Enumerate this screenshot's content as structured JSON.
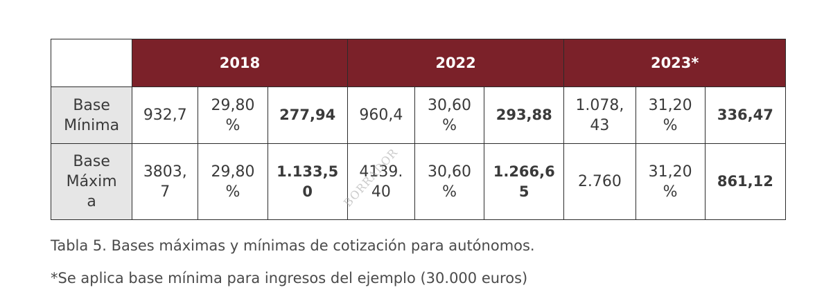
{
  "table": {
    "years": [
      "2018",
      "2022",
      "2023*"
    ],
    "rows": [
      {
        "label": "Base\nMínima",
        "cells": [
          {
            "base": "932,7",
            "rate": "29,80\n%",
            "amount": "277,94"
          },
          {
            "base": "960,4",
            "rate": "30,60\n%",
            "amount": "293,88"
          },
          {
            "base": "1.078,\n43",
            "rate": "31,20\n%",
            "amount": "336,47"
          }
        ]
      },
      {
        "label": "Base\nMáxim\na",
        "cells": [
          {
            "base": "3803,\n7",
            "rate": "29,80\n%",
            "amount": "1.133,5\n0"
          },
          {
            "base": "4139.\n40",
            "rate": "30,60\n%",
            "amount": "1.266,6\n5"
          },
          {
            "base": "2.760",
            "rate": "31,20\n%",
            "amount": "861,12"
          }
        ]
      }
    ]
  },
  "captions": {
    "table_caption": "Tabla 5. Bases máximas y mínimas de cotización para autónomos.",
    "footnote": "*Se aplica base mínima para ingresos del ejemplo (30.000 euros)"
  },
  "watermark": {
    "text": "BORRADOR",
    "color": "#a0a0a0"
  },
  "colors": {
    "header_bg": "#7b2129",
    "label_bg": "#e6e6e6"
  }
}
